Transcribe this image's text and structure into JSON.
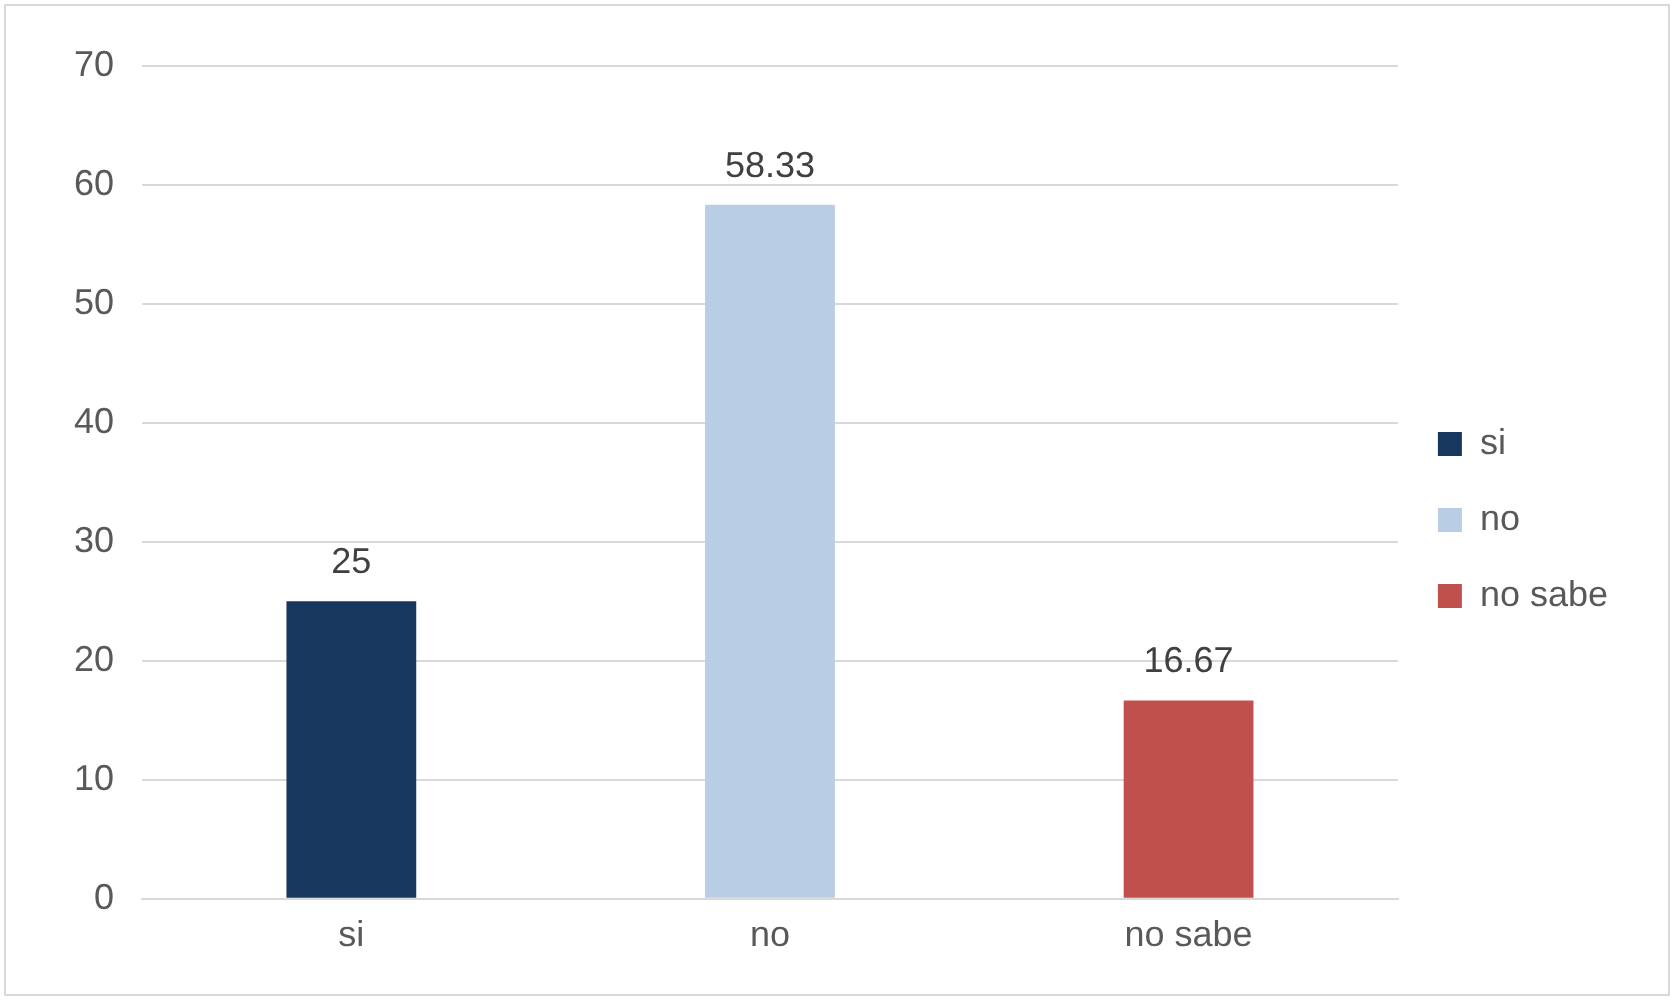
{
  "chart_data": {
    "type": "bar",
    "categories": [
      "si",
      "no",
      "no sabe"
    ],
    "series": [
      {
        "name": "si",
        "color": "#17375e",
        "values": [
          25,
          null,
          null
        ]
      },
      {
        "name": "no",
        "color": "#b9cde5",
        "values": [
          null,
          58.33,
          null
        ]
      },
      {
        "name": "no sabe",
        "color": "#c0504d",
        "values": [
          null,
          null,
          16.67
        ]
      }
    ],
    "ylim": [
      0,
      70
    ],
    "yticks": [
      0,
      10,
      20,
      30,
      40,
      50,
      60,
      70
    ],
    "grid": "y",
    "legend": "right",
    "data_labels": true
  }
}
